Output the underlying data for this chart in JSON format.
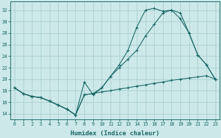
{
  "xlabel": "Humidex (Indice chaleur)",
  "bg_color": "#cce8e8",
  "grid_color": "#aad0d0",
  "line_color": "#1a6666",
  "xlim": [
    -0.5,
    23.5
  ],
  "ylim": [
    13.0,
    33.5
  ],
  "ytick_values": [
    14,
    16,
    18,
    20,
    22,
    24,
    26,
    28,
    30,
    32
  ],
  "xtick_values": [
    0,
    1,
    2,
    3,
    4,
    5,
    6,
    7,
    8,
    9,
    10,
    11,
    12,
    13,
    14,
    15,
    16,
    17,
    18,
    19,
    20,
    21,
    22,
    23
  ],
  "line_low_x": [
    0,
    1,
    2,
    3,
    4,
    5,
    6,
    7,
    8,
    9,
    10,
    11,
    12,
    13,
    14,
    15,
    16,
    17,
    18,
    19,
    20,
    21,
    22,
    23
  ],
  "line_low_y": [
    18.5,
    17.5,
    17.0,
    16.8,
    16.2,
    15.5,
    14.8,
    13.8,
    17.3,
    17.5,
    17.8,
    18.0,
    18.3,
    18.5,
    18.8,
    19.0,
    19.3,
    19.5,
    19.8,
    20.0,
    20.2,
    20.4,
    20.6,
    20.0
  ],
  "line_mid_x": [
    0,
    1,
    2,
    3,
    4,
    5,
    6,
    7,
    8,
    9,
    10,
    11,
    12,
    13,
    14,
    15,
    16,
    17,
    18,
    19,
    20,
    21,
    22,
    23
  ],
  "line_mid_y": [
    18.5,
    17.5,
    17.0,
    16.8,
    16.2,
    15.5,
    14.8,
    13.8,
    19.5,
    17.3,
    18.5,
    20.5,
    22.0,
    23.5,
    25.0,
    27.5,
    29.5,
    31.5,
    32.0,
    31.5,
    28.0,
    24.2,
    22.5,
    20.0
  ],
  "line_top_x": [
    0,
    1,
    2,
    3,
    4,
    5,
    6,
    7,
    8,
    9,
    10,
    11,
    12,
    13,
    14,
    15,
    16,
    17,
    18,
    19,
    20,
    21,
    22,
    23
  ],
  "line_top_y": [
    18.5,
    17.5,
    17.0,
    16.8,
    16.2,
    15.5,
    14.8,
    13.8,
    17.3,
    17.5,
    18.5,
    20.5,
    22.5,
    25.0,
    29.0,
    32.0,
    32.3,
    31.8,
    32.0,
    30.5,
    28.0,
    24.2,
    22.5,
    20.0
  ]
}
